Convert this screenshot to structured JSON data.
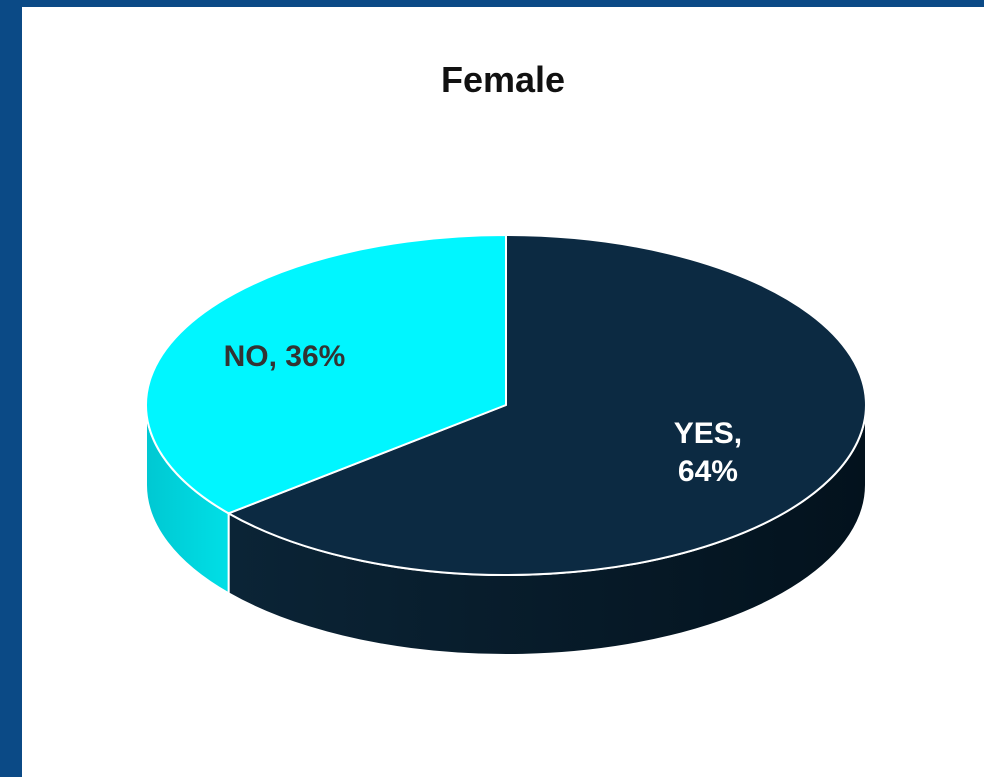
{
  "chart_data": {
    "type": "pie",
    "title": "Female",
    "slices": [
      {
        "label": "YES",
        "value": 64,
        "color": "#0c2a42",
        "data_label": "YES,\n64%"
      },
      {
        "label": "NO",
        "value": 36,
        "color": "#00f6ff",
        "data_label": "NO, 36%"
      }
    ],
    "style": "3d",
    "background": "#ffffff",
    "frame_color": "#0b4a86"
  }
}
